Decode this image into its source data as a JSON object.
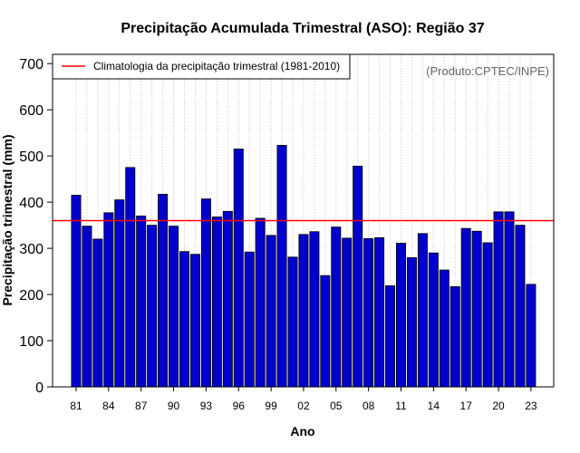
{
  "chart_data": {
    "type": "bar",
    "title": "Precipitação Acumulada Trimestral (ASO): Região 37",
    "xlabel": "Ano",
    "ylabel": "Precipitação trimestral (mm)",
    "ylim": [
      0,
      720
    ],
    "yticks": [
      0,
      100,
      200,
      300,
      400,
      500,
      600,
      700
    ],
    "x": [
      1981,
      1982,
      1983,
      1984,
      1985,
      1986,
      1987,
      1988,
      1989,
      1990,
      1991,
      1992,
      1993,
      1994,
      1995,
      1996,
      1997,
      1998,
      1999,
      2000,
      2001,
      2002,
      2003,
      2004,
      2005,
      2006,
      2007,
      2008,
      2009,
      2010,
      2011,
      2012,
      2013,
      2014,
      2015,
      2016,
      2017,
      2018,
      2019,
      2020,
      2021,
      2022,
      2023
    ],
    "xtick_labels": [
      "81",
      "84",
      "87",
      "90",
      "93",
      "96",
      "99",
      "02",
      "05",
      "08",
      "11",
      "14",
      "17",
      "20",
      "23"
    ],
    "values": [
      415,
      348,
      320,
      377,
      405,
      475,
      370,
      350,
      417,
      348,
      293,
      287,
      407,
      368,
      380,
      515,
      292,
      365,
      328,
      523,
      281,
      330,
      336,
      241,
      346,
      322,
      478,
      321,
      323,
      219,
      311,
      280,
      332,
      290,
      253,
      217,
      343,
      337,
      312,
      379,
      379,
      350,
      222
    ],
    "bar_color": "#0000cd",
    "reference_line": {
      "value": 360,
      "color": "#ff0000",
      "label": "Climatologia da precipitação trimestral (1981-2010)"
    },
    "legend_position": "top-left",
    "source_note": "(Produto:CPTEC/INPE)",
    "grid": "vertical dotted"
  }
}
